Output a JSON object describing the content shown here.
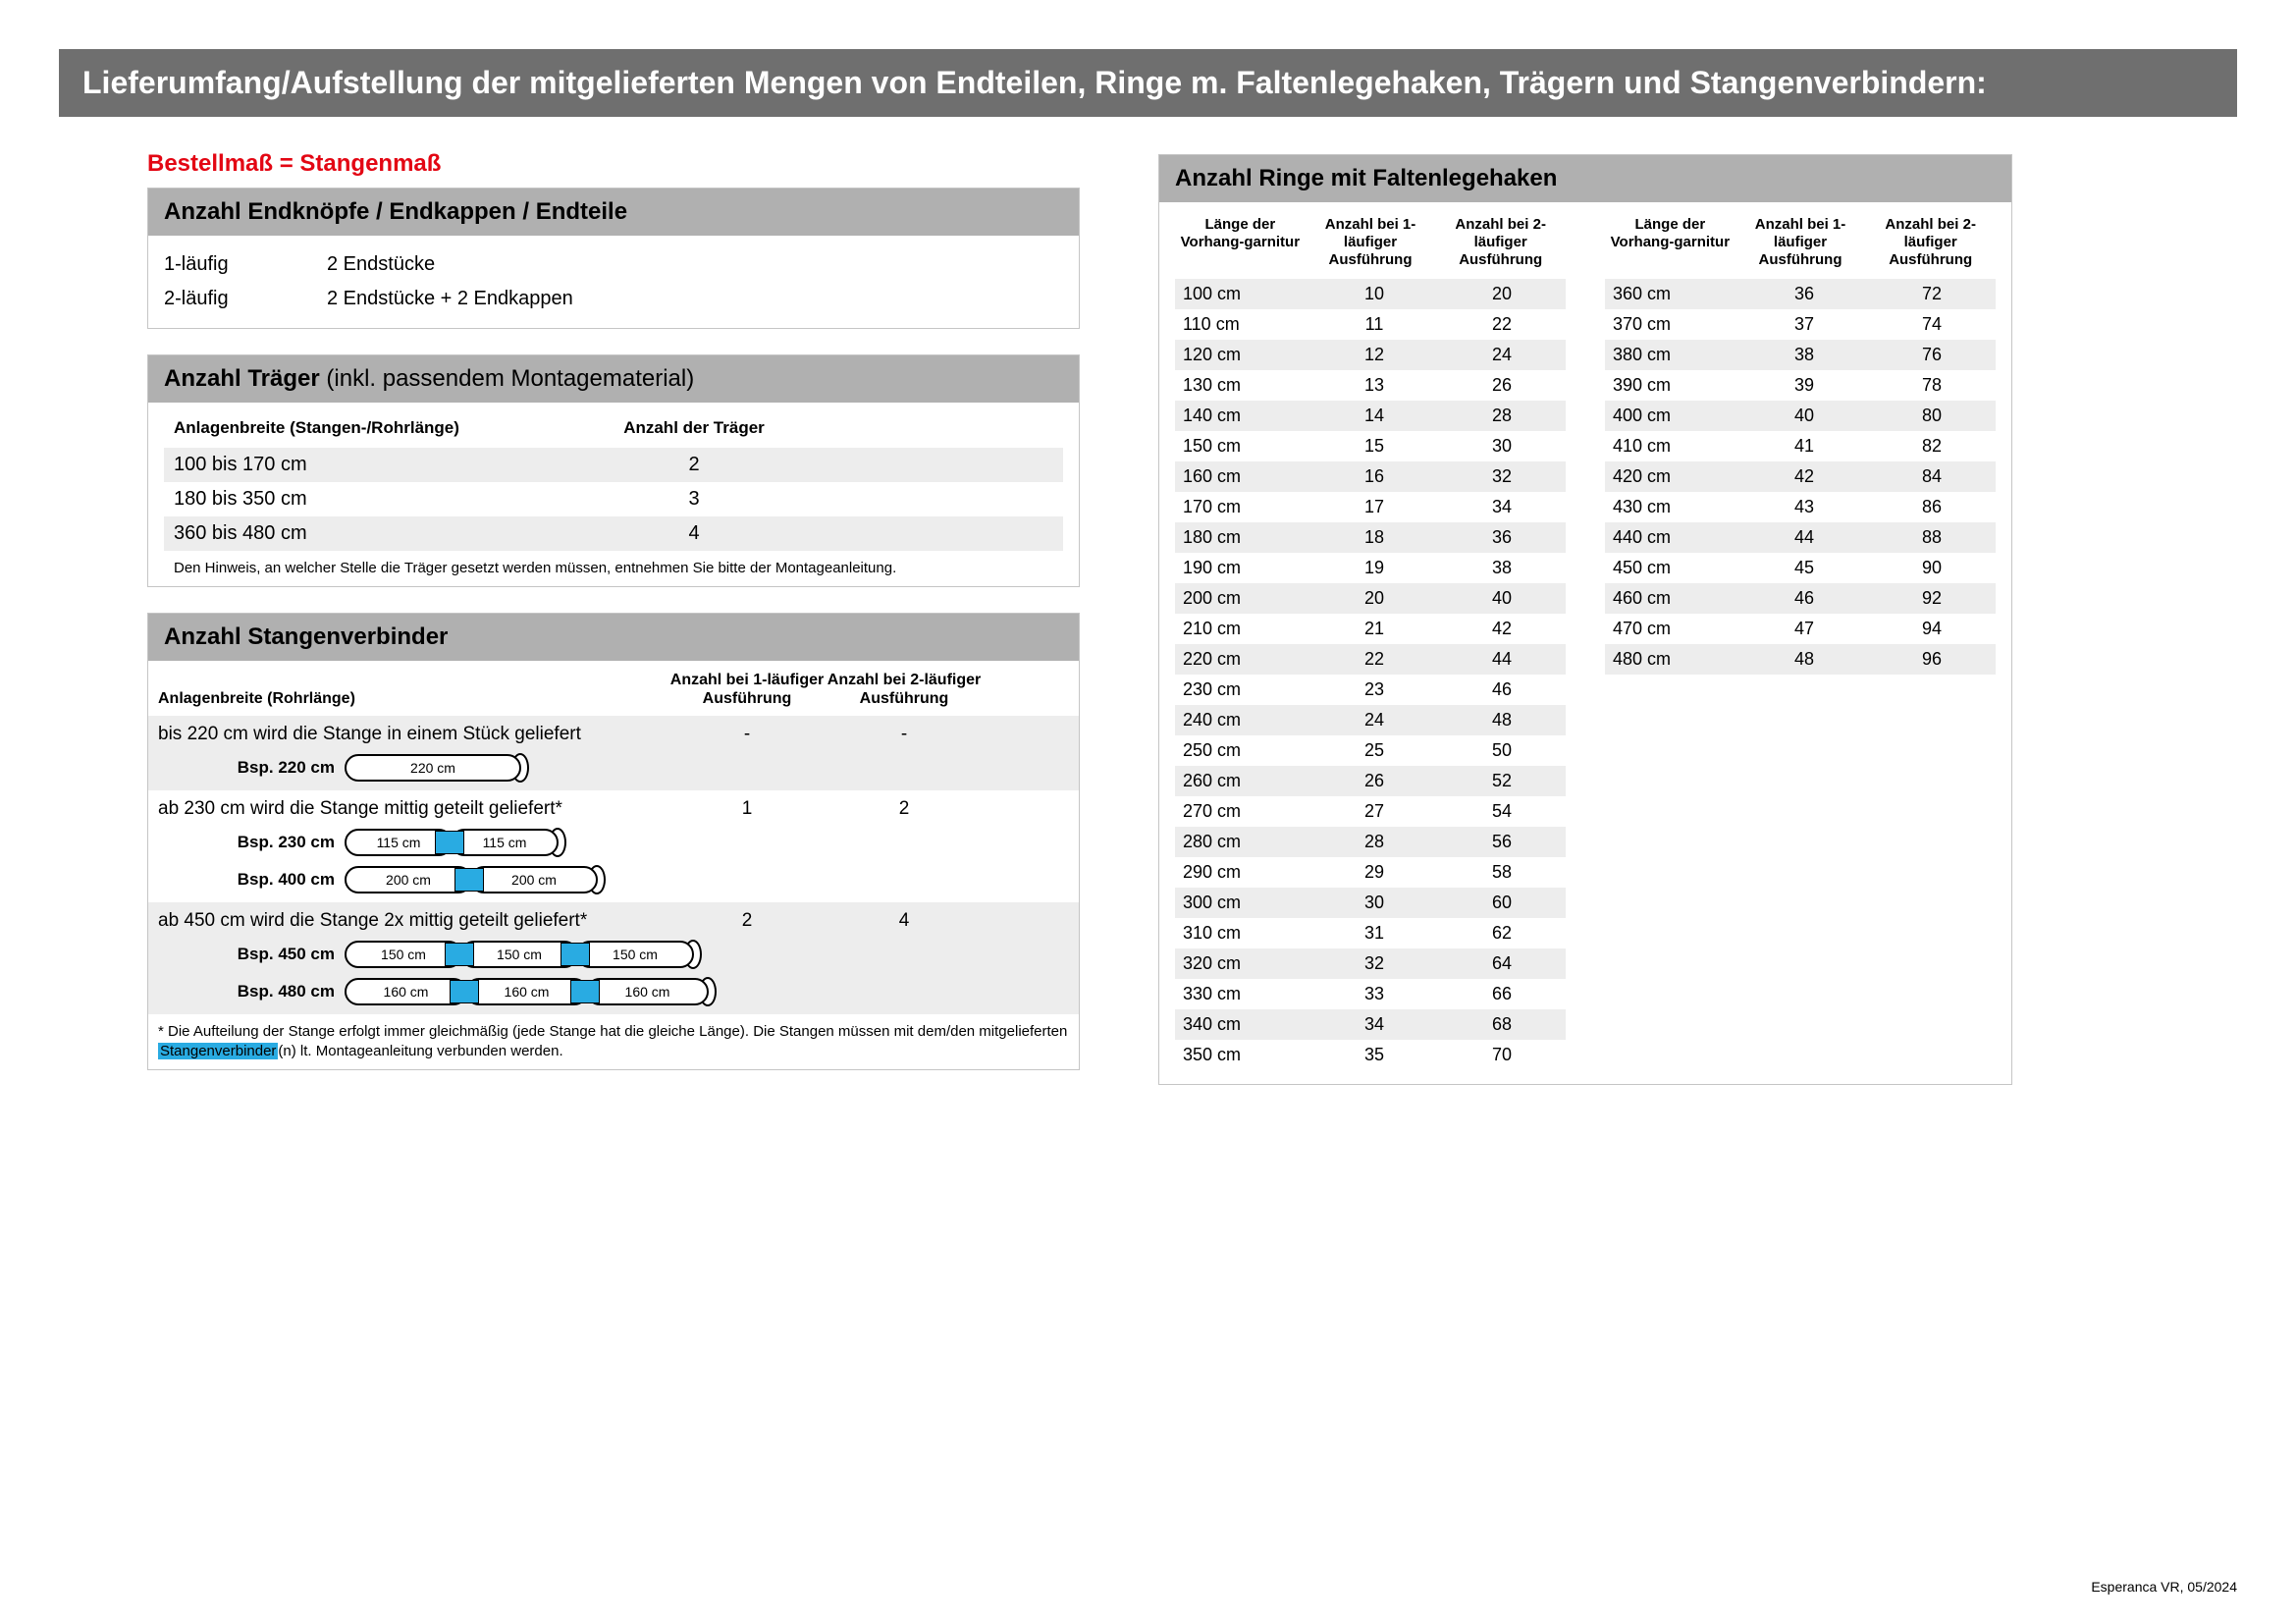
{
  "banner": "Lieferumfang/Aufstellung der mitgelieferten Mengen von Endteilen, Ringe m. Faltenlegehaken, Trägern und Stangenverbindern:",
  "redline": "Bestellmaß = Stangenmaß",
  "box1": {
    "title": "Anzahl Endknöpfe / Endkappen / Endteile",
    "rows": [
      {
        "c1": "1-läufig",
        "c2": "2 Endstücke"
      },
      {
        "c1": "2-läufig",
        "c2": "2 Endstücke + 2 Endkappen"
      }
    ]
  },
  "box2": {
    "title": "Anzahl Träger",
    "title_paren": "(inkl. passendem Montagematerial)",
    "head1": "Anlagenbreite (Stangen-/Rohrlänge)",
    "head2": "Anzahl der Träger",
    "rows": [
      {
        "c1": "100 bis 170 cm",
        "c2": "2"
      },
      {
        "c1": "180 bis 350 cm",
        "c2": "3"
      },
      {
        "c1": "360 bis 480 cm",
        "c2": "4"
      }
    ],
    "note": "Den Hinweis, an welcher Stelle die Träger gesetzt werden müssen, entnehmen Sie bitte der Montageanleitung."
  },
  "box3": {
    "title": "Anzahl Stangenverbinder",
    "head1": "Anlagenbreite (Rohrlänge)",
    "head2": "Anzahl bei 1-läufiger Ausführung",
    "head3": "Anzahl bei 2-läufiger Ausführung",
    "block1": {
      "text": "bis 220 cm wird die Stange in einem Stück geliefert",
      "n1": "-",
      "n2": "-",
      "bsp": [
        {
          "label": "Bsp. 220 cm",
          "segs": [
            "220 cm"
          ]
        }
      ]
    },
    "block2": {
      "text": "ab 230 cm wird die Stange mittig geteilt geliefert*",
      "n1": "1",
      "n2": "2",
      "bsp": [
        {
          "label": "Bsp. 230 cm",
          "segs": [
            "115 cm",
            "115 cm"
          ]
        },
        {
          "label": "Bsp. 400 cm",
          "segs": [
            "200 cm",
            "200 cm"
          ]
        }
      ]
    },
    "block3": {
      "text": "ab 450 cm wird die Stange 2x mittig geteilt geliefert*",
      "n1": "2",
      "n2": "4",
      "bsp": [
        {
          "label": "Bsp. 450 cm",
          "segs": [
            "150 cm",
            "150 cm",
            "150 cm"
          ]
        },
        {
          "label": "Bsp. 480 cm",
          "segs": [
            "160 cm",
            "160 cm",
            "160 cm"
          ]
        }
      ]
    },
    "foot_a": "* Die Aufteilung der Stange erfolgt immer gleichmäßig (jede Stange hat die gleiche Länge). Die Stangen müssen mit dem/den mitgelieferten ",
    "foot_hl": "Stangenverbinder",
    "foot_b": "(n) lt. Montageanleitung verbunden werden."
  },
  "box4": {
    "title": "Anzahl Ringe mit Faltenlegehaken",
    "head1": "Länge der Vorhang-garnitur",
    "head2": "Anzahl bei 1-läufiger Ausführung",
    "head3": "Anzahl bei 2-läufiger Ausführung",
    "col1": [
      [
        "100 cm",
        "10",
        "20"
      ],
      [
        "110 cm",
        "11",
        "22"
      ],
      [
        "120 cm",
        "12",
        "24"
      ],
      [
        "130 cm",
        "13",
        "26"
      ],
      [
        "140 cm",
        "14",
        "28"
      ],
      [
        "150 cm",
        "15",
        "30"
      ],
      [
        "160 cm",
        "16",
        "32"
      ],
      [
        "170 cm",
        "17",
        "34"
      ],
      [
        "180 cm",
        "18",
        "36"
      ],
      [
        "190 cm",
        "19",
        "38"
      ],
      [
        "200 cm",
        "20",
        "40"
      ],
      [
        "210 cm",
        "21",
        "42"
      ],
      [
        "220 cm",
        "22",
        "44"
      ],
      [
        "230 cm",
        "23",
        "46"
      ],
      [
        "240 cm",
        "24",
        "48"
      ],
      [
        "250 cm",
        "25",
        "50"
      ],
      [
        "260 cm",
        "26",
        "52"
      ],
      [
        "270 cm",
        "27",
        "54"
      ],
      [
        "280 cm",
        "28",
        "56"
      ],
      [
        "290 cm",
        "29",
        "58"
      ],
      [
        "300 cm",
        "30",
        "60"
      ],
      [
        "310 cm",
        "31",
        "62"
      ],
      [
        "320 cm",
        "32",
        "64"
      ],
      [
        "330 cm",
        "33",
        "66"
      ],
      [
        "340 cm",
        "34",
        "68"
      ],
      [
        "350 cm",
        "35",
        "70"
      ]
    ],
    "col2": [
      [
        "360 cm",
        "36",
        "72"
      ],
      [
        "370 cm",
        "37",
        "74"
      ],
      [
        "380 cm",
        "38",
        "76"
      ],
      [
        "390 cm",
        "39",
        "78"
      ],
      [
        "400 cm",
        "40",
        "80"
      ],
      [
        "410 cm",
        "41",
        "82"
      ],
      [
        "420 cm",
        "42",
        "84"
      ],
      [
        "430 cm",
        "43",
        "86"
      ],
      [
        "440 cm",
        "44",
        "88"
      ],
      [
        "450 cm",
        "45",
        "90"
      ],
      [
        "460 cm",
        "46",
        "92"
      ],
      [
        "470 cm",
        "47",
        "94"
      ],
      [
        "480 cm",
        "48",
        "96"
      ]
    ]
  },
  "footer": "Esperanca VR, 05/2024",
  "colors": {
    "banner_bg": "#6f6f6f",
    "red": "#e30613",
    "boxhead_bg": "#b0b0b0",
    "shade": "#ededed",
    "connector": "#29abe2"
  }
}
